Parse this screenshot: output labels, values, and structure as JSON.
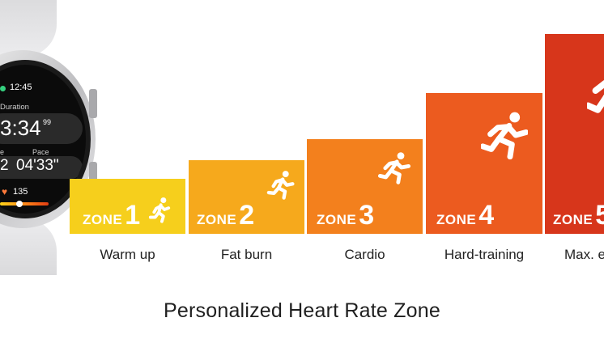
{
  "watch": {
    "time": "12:45",
    "duration_label": "Duration",
    "duration_value": "3:34",
    "duration_fraction": "99",
    "pace_left_label": "e",
    "pace_label": "Pace",
    "pace_left_value": "2",
    "pace_value": "04'33\"",
    "heart_icon": "heart-icon",
    "heart_rate": "135"
  },
  "zones": [
    {
      "word": "ZONE",
      "number": "1",
      "label": "Warm up",
      "color": "#f6cf1c"
    },
    {
      "word": "ZONE",
      "number": "2",
      "label": "Fat burn",
      "color": "#f6a91c"
    },
    {
      "word": "ZONE",
      "number": "3",
      "label": "Cardio",
      "color": "#f3801d"
    },
    {
      "word": "ZONE",
      "number": "4",
      "label": "Hard-training",
      "color": "#ec5b1f"
    },
    {
      "word": "ZONE",
      "number": "5",
      "label": "Max. e",
      "color": "#d7361b"
    }
  ],
  "icons": {
    "zone_icon": "runner-icon"
  },
  "title": "Personalized Heart Rate Zone"
}
